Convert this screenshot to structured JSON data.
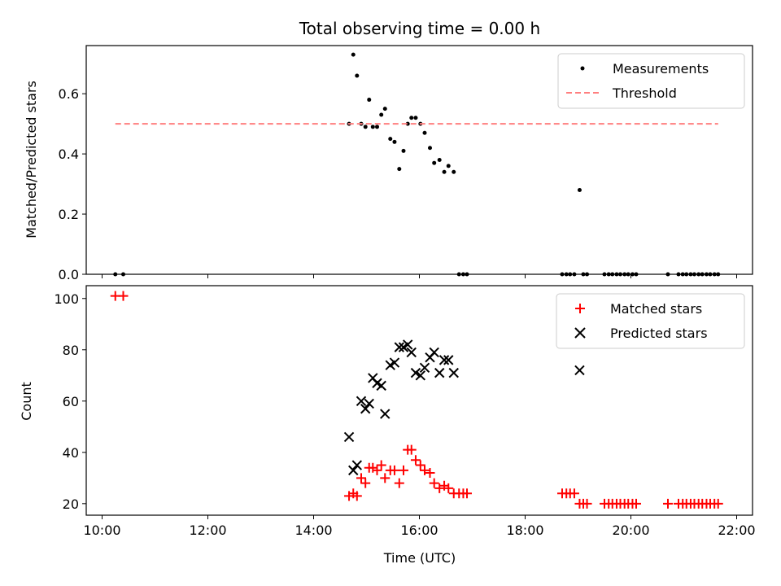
{
  "chart_data": [
    {
      "type": "scatter",
      "title": "Total observing time = 0.00 h",
      "xlabel": "",
      "ylabel": "Matched/Predicted stars",
      "xlim": [
        9.7,
        22.3
      ],
      "ylim": [
        0.0,
        0.76
      ],
      "yticks": [
        0.0,
        0.2,
        0.4,
        0.6
      ],
      "ytick_labels": [
        "0.0",
        "0.2",
        "0.4",
        "0.6"
      ],
      "xtick_labels_shown": false,
      "legend_position": "top-right",
      "grid": false,
      "series": [
        {
          "name": "Measurements",
          "marker": "dot",
          "color": "#000000",
          "x": [
            10.25,
            10.4,
            14.67,
            14.75,
            14.82,
            14.9,
            14.98,
            15.05,
            15.12,
            15.2,
            15.28,
            15.35,
            15.45,
            15.53,
            15.62,
            15.7,
            15.78,
            15.85,
            15.93,
            16.02,
            16.1,
            16.2,
            16.28,
            16.38,
            16.47,
            16.55,
            16.65,
            16.75,
            16.83,
            16.9,
            18.7,
            18.78,
            18.85,
            18.93,
            19.03,
            19.1,
            19.17,
            19.5,
            19.58,
            19.65,
            19.73,
            19.8,
            19.88,
            19.95,
            20.03,
            20.1,
            20.7,
            20.9,
            20.98,
            21.05,
            21.13,
            21.2,
            21.28,
            21.35,
            21.43,
            21.5,
            21.58,
            21.65
          ],
          "y": [
            0.0,
            0.0,
            0.5,
            0.73,
            0.66,
            0.5,
            0.49,
            0.58,
            0.49,
            0.49,
            0.53,
            0.55,
            0.45,
            0.44,
            0.35,
            0.41,
            0.5,
            0.52,
            0.52,
            0.5,
            0.47,
            0.42,
            0.37,
            0.38,
            0.34,
            0.36,
            0.34,
            0.0,
            0.0,
            0.0,
            0.0,
            0.0,
            0.0,
            0.0,
            0.28,
            0.0,
            0.0,
            0.0,
            0.0,
            0.0,
            0.0,
            0.0,
            0.0,
            0.0,
            0.0,
            0.0,
            0.0,
            0.0,
            0.0,
            0.0,
            0.0,
            0.0,
            0.0,
            0.0,
            0.0,
            0.0,
            0.0,
            0.0
          ]
        },
        {
          "name": "Threshold",
          "marker": "dashed-line",
          "color": "#ff7f7f",
          "x": [
            10.25,
            21.65
          ],
          "y": [
            0.5,
            0.5
          ]
        }
      ]
    },
    {
      "type": "scatter",
      "title": "",
      "xlabel": "Time (UTC)",
      "ylabel": "Count",
      "xlim": [
        9.7,
        22.3
      ],
      "ylim": [
        15.5,
        105
      ],
      "xticks": [
        10,
        12,
        14,
        16,
        18,
        20,
        22
      ],
      "xtick_labels": [
        "10:00",
        "12:00",
        "14:00",
        "16:00",
        "18:00",
        "20:00",
        "22:00"
      ],
      "yticks": [
        20,
        40,
        60,
        80,
        100
      ],
      "ytick_labels": [
        "20",
        "40",
        "60",
        "80",
        "100"
      ],
      "legend_position": "top-right",
      "grid": false,
      "series": [
        {
          "name": "Matched stars",
          "marker": "plus",
          "color": "#ff0000",
          "x": [
            10.25,
            10.4,
            14.67,
            14.75,
            14.82,
            14.9,
            14.98,
            15.05,
            15.12,
            15.2,
            15.28,
            15.35,
            15.45,
            15.53,
            15.62,
            15.7,
            15.78,
            15.85,
            15.93,
            16.02,
            16.1,
            16.2,
            16.28,
            16.38,
            16.47,
            16.55,
            16.65,
            16.75,
            16.83,
            16.9,
            18.7,
            18.78,
            18.85,
            18.93,
            19.03,
            19.1,
            19.17,
            19.5,
            19.58,
            19.65,
            19.73,
            19.8,
            19.88,
            19.95,
            20.03,
            20.1,
            20.7,
            20.9,
            20.98,
            21.05,
            21.13,
            21.2,
            21.28,
            21.35,
            21.43,
            21.5,
            21.58,
            21.65
          ],
          "y": [
            101,
            101,
            23,
            24,
            23,
            30,
            28,
            34,
            34,
            33,
            35,
            30,
            33,
            33,
            28,
            33,
            41,
            41,
            37,
            35,
            33,
            32,
            28,
            26,
            27,
            26,
            24,
            24,
            24,
            24,
            24,
            24,
            24,
            24,
            20,
            20,
            20,
            20,
            20,
            20,
            20,
            20,
            20,
            20,
            20,
            20,
            20,
            20,
            20,
            20,
            20,
            20,
            20,
            20,
            20,
            20,
            20,
            20
          ]
        },
        {
          "name": "Predicted stars",
          "marker": "x",
          "color": "#000000",
          "x": [
            14.67,
            14.75,
            14.82,
            14.9,
            14.98,
            15.05,
            15.12,
            15.2,
            15.28,
            15.35,
            15.45,
            15.53,
            15.62,
            15.7,
            15.78,
            15.85,
            15.93,
            16.02,
            16.1,
            16.2,
            16.28,
            16.38,
            16.47,
            16.55,
            16.65,
            19.03
          ],
          "y": [
            46,
            33,
            35,
            60,
            57,
            59,
            69,
            67,
            66,
            55,
            74,
            75,
            81,
            81,
            82,
            79,
            71,
            70,
            73,
            77,
            79,
            71,
            76,
            76,
            71,
            72
          ]
        }
      ]
    }
  ]
}
